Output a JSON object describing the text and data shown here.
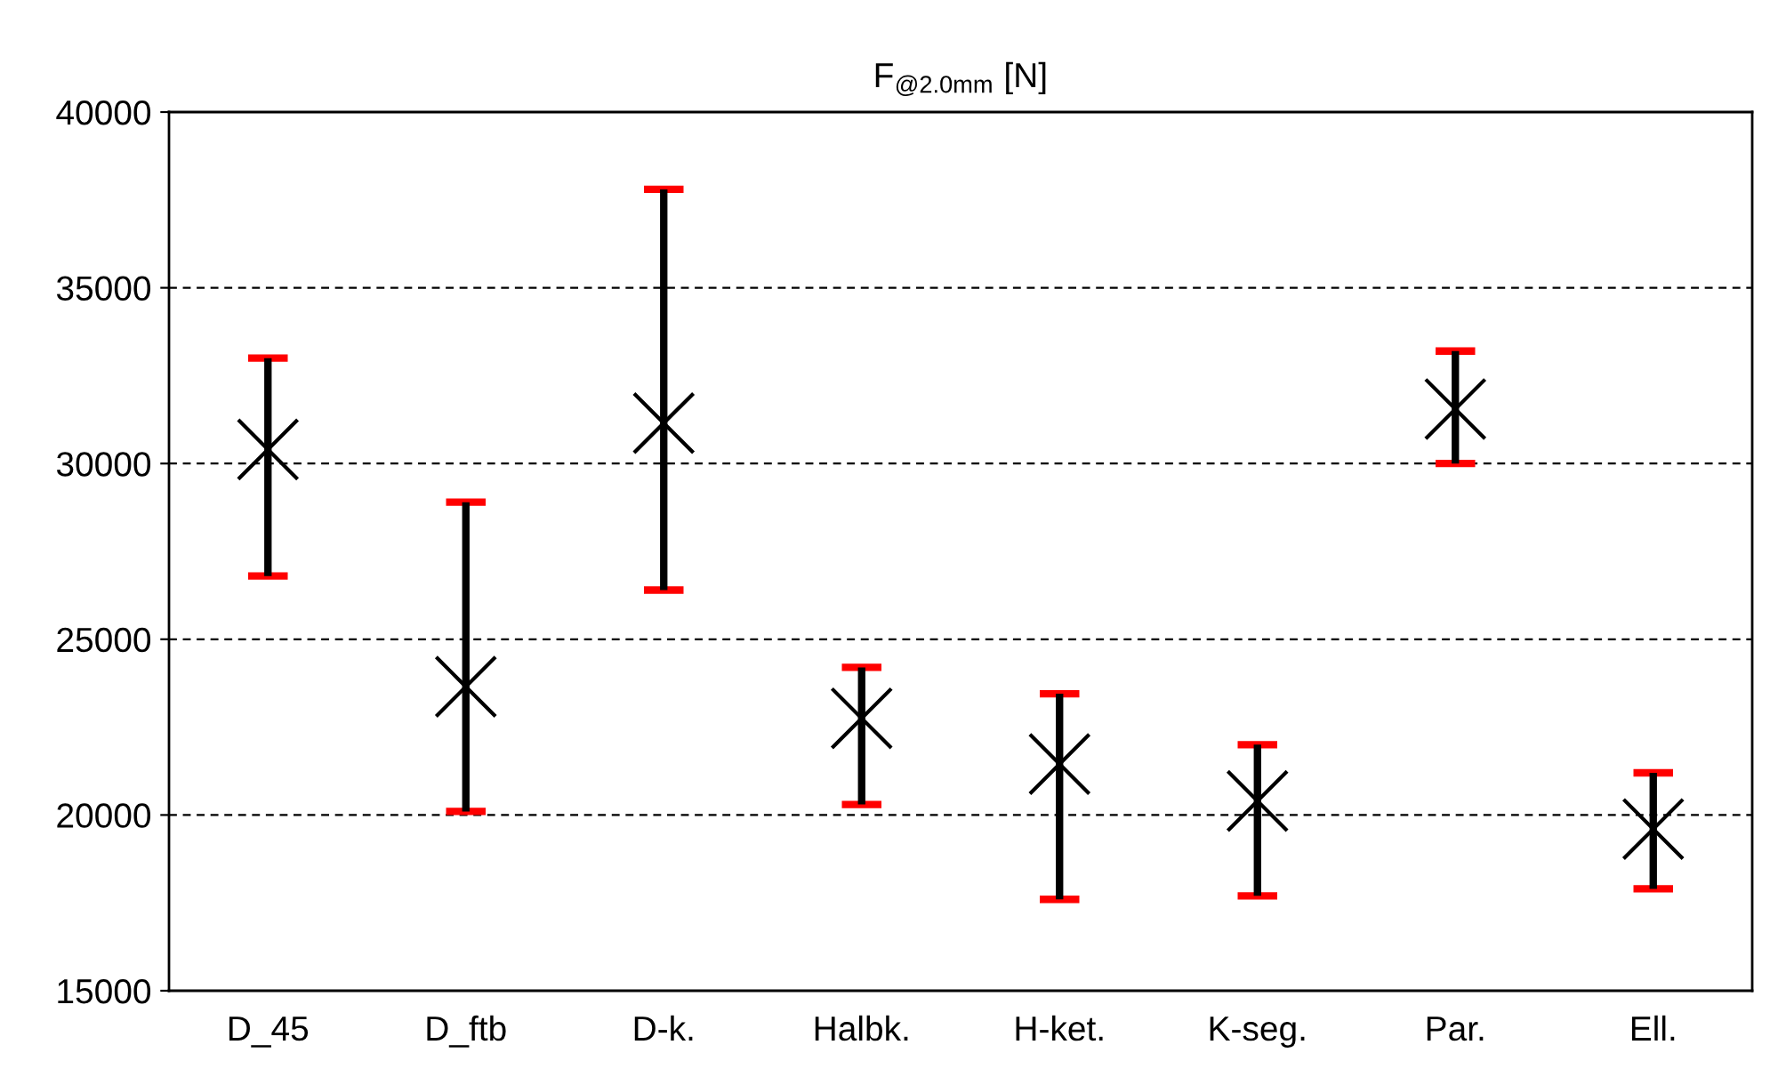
{
  "chart_data": {
    "type": "scatter",
    "title": "F$_{@2.0mm}$ [N]",
    "categories": [
      "D_45",
      "D_ftb",
      "D-k.",
      "Halbk.",
      "H-ket.",
      "K-seg.",
      "Par.",
      "Ell."
    ],
    "series": [
      {
        "color": "#000000",
        "values": [
          30400,
          23650,
          31150,
          22750,
          21450,
          20400,
          31550,
          19600
        ],
        "errors": [
          [
            26800,
            33000
          ],
          [
            20100,
            28900
          ],
          [
            26400,
            37800
          ],
          [
            20300,
            24200
          ],
          [
            17600,
            23450
          ],
          [
            17700,
            22000
          ],
          [
            30000,
            33200
          ],
          [
            17900,
            21200
          ]
        ]
      }
    ],
    "marker": "cross",
    "ylim": [
      15000,
      40000
    ],
    "yticks": [
      15000,
      20000,
      25000,
      30000,
      35000,
      40000
    ],
    "grid": "y"
  }
}
